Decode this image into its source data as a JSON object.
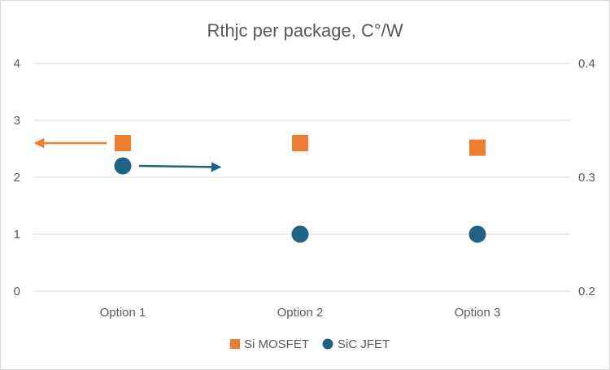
{
  "chart_data": {
    "type": "scatter",
    "title": "Rthjc per package, C°/W",
    "categories": [
      "Option 1",
      "Option 2",
      "Option 3"
    ],
    "y_left": {
      "ylim": [
        0,
        4
      ],
      "ticks": [
        "0",
        "1",
        "2",
        "3",
        "4"
      ]
    },
    "y_right": {
      "ylim": [
        0.2,
        0.4
      ],
      "ticks": [
        "0.2",
        "0.3",
        "0.4"
      ]
    },
    "grid": true,
    "legend_position": "bottom",
    "series": [
      {
        "name": "Si MOSFET",
        "axis": "left",
        "marker": "square",
        "color": "#ED7D31",
        "values": [
          2.6,
          2.6,
          2.52
        ]
      },
      {
        "name": "SiC JFET",
        "axis": "right",
        "marker": "circle",
        "color": "#1F6284",
        "values": [
          0.31,
          0.25,
          0.25
        ]
      }
    ],
    "annotations": [
      {
        "type": "arrow",
        "direction": "left",
        "series": "Si MOSFET",
        "color": "#ED7D31"
      },
      {
        "type": "arrow",
        "direction": "right",
        "series": "SiC JFET",
        "color": "#1F6284"
      }
    ]
  }
}
